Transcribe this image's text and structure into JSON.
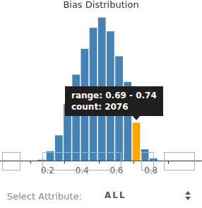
{
  "chart_data": {
    "type": "histogram",
    "title": "Bias Distribution",
    "bins": [
      0.14,
      0.19,
      0.24,
      0.29,
      0.34,
      0.39,
      0.44,
      0.49,
      0.54,
      0.59,
      0.64,
      0.69,
      0.74,
      0.79,
      0.84
    ],
    "values": [
      75,
      530,
      1400,
      3100,
      4700,
      6100,
      7240,
      7800,
      7050,
      5700,
      4300,
      2076,
      640,
      150
    ],
    "colors": [
      "#4682b4",
      "#4682b4",
      "#4682b4",
      "#4682b4",
      "#4682b4",
      "#4682b4",
      "#4682b4",
      "#4682b4",
      "#4682b4",
      "#4682b4",
      "#4682b4",
      "#ffa500",
      "#4682b4",
      "#4682b4"
    ],
    "xlim": [
      0.07,
      0.95
    ],
    "xticks": [
      0.2,
      0.4,
      0.6,
      0.8
    ],
    "ylim": [
      0,
      8000
    ],
    "tick_labels": "x",
    "grid": false,
    "annotations": [
      "range: 0.69 - 0.74",
      "count: 2076"
    ]
  },
  "controls": {
    "label": "Select Attribute:",
    "selected": "ALL"
  }
}
